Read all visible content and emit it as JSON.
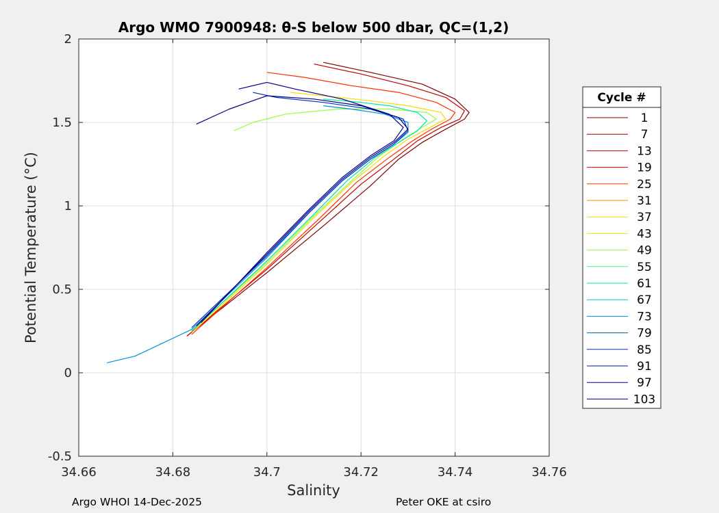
{
  "chart_data": {
    "type": "line",
    "title": "Argo WMO 7900948: θ-S below 500 dbar,  QC=(1,2)",
    "xlabel": "Salinity",
    "ylabel": "Potential Temperature (°C)",
    "xlim": [
      34.66,
      34.76
    ],
    "ylim": [
      -0.5,
      2
    ],
    "xticks": [
      34.66,
      34.68,
      34.7,
      34.72,
      34.74,
      34.76
    ],
    "xtick_labels": [
      "34.66",
      "34.68",
      "34.7",
      "34.72",
      "34.74",
      "34.76"
    ],
    "yticks": [
      -0.5,
      0,
      0.5,
      1,
      1.5,
      2
    ],
    "ytick_labels": [
      "-0.5",
      "0",
      "0.5",
      "1",
      "1.5",
      "2"
    ],
    "grid": true,
    "legend": {
      "title": "Cycle #",
      "location": "right",
      "entries": [
        "1",
        "7",
        "13",
        "19",
        "25",
        "31",
        "37",
        "43",
        "49",
        "55",
        "61",
        "67",
        "73",
        "79",
        "85",
        "91",
        "97",
        "103"
      ],
      "colors": [
        "#7f0000",
        "#9a0000",
        "#c00000",
        "#e00000",
        "#ff3000",
        "#ff9000",
        "#ffd800",
        "#d8f000",
        "#90ff40",
        "#40ff80",
        "#00e0b0",
        "#00c0e0",
        "#0090d8",
        "#0060a0",
        "#0030c0",
        "#0010a0",
        "#000080",
        "#00008c"
      ]
    },
    "series": [
      {
        "name": "1",
        "x": [
          34.683,
          34.7,
          34.712,
          34.722,
          34.728,
          34.733,
          34.738,
          34.742,
          34.743,
          34.74,
          34.733,
          34.722,
          34.712
        ],
        "y": [
          0.22,
          0.6,
          0.88,
          1.12,
          1.28,
          1.38,
          1.46,
          1.52,
          1.56,
          1.64,
          1.73,
          1.8,
          1.86
        ]
      },
      {
        "name": "13",
        "x": [
          34.683,
          34.7,
          34.711,
          34.72,
          34.727,
          34.732,
          34.737,
          34.741,
          34.742,
          34.738,
          34.73,
          34.72,
          34.71
        ],
        "y": [
          0.22,
          0.62,
          0.9,
          1.13,
          1.28,
          1.39,
          1.47,
          1.52,
          1.57,
          1.65,
          1.72,
          1.79,
          1.85
        ]
      },
      {
        "name": "25",
        "x": [
          34.684,
          34.7,
          34.711,
          34.719,
          34.726,
          34.731,
          34.735,
          34.739,
          34.74,
          34.736,
          34.728,
          34.718,
          34.708,
          34.7
        ],
        "y": [
          0.23,
          0.63,
          0.92,
          1.14,
          1.29,
          1.39,
          1.46,
          1.52,
          1.56,
          1.62,
          1.68,
          1.72,
          1.77,
          1.8
        ]
      },
      {
        "name": "37",
        "x": [
          34.684,
          34.7,
          34.71,
          34.718,
          34.725,
          34.73,
          34.734,
          34.738,
          34.737,
          34.73,
          34.722,
          34.712,
          34.705
        ],
        "y": [
          0.24,
          0.65,
          0.93,
          1.14,
          1.3,
          1.4,
          1.46,
          1.52,
          1.56,
          1.6,
          1.63,
          1.66,
          1.68
        ]
      },
      {
        "name": "49",
        "x": [
          34.684,
          34.7,
          34.71,
          34.718,
          34.724,
          34.729,
          34.733,
          34.736,
          34.734,
          34.726,
          34.715,
          34.704,
          34.697,
          34.693
        ],
        "y": [
          0.25,
          0.66,
          0.94,
          1.15,
          1.3,
          1.4,
          1.47,
          1.52,
          1.56,
          1.58,
          1.58,
          1.55,
          1.5,
          1.45
        ]
      },
      {
        "name": "61",
        "x": [
          34.684,
          34.7,
          34.71,
          34.717,
          34.723,
          34.728,
          34.732,
          34.734,
          34.732,
          34.726,
          34.72,
          34.712
        ],
        "y": [
          0.25,
          0.67,
          0.95,
          1.15,
          1.29,
          1.38,
          1.45,
          1.51,
          1.56,
          1.6,
          1.62,
          1.64
        ]
      },
      {
        "name": "73",
        "x": [
          34.666,
          34.672,
          34.678,
          34.684,
          34.7,
          34.709,
          34.716,
          34.722,
          34.727,
          34.73,
          34.73,
          34.725,
          34.718,
          34.712
        ],
        "y": [
          0.06,
          0.1,
          0.18,
          0.26,
          0.69,
          0.96,
          1.15,
          1.28,
          1.37,
          1.44,
          1.5,
          1.55,
          1.58,
          1.6
        ]
      },
      {
        "name": "85",
        "x": [
          34.684,
          34.7,
          34.709,
          34.716,
          34.722,
          34.727,
          34.73,
          34.729,
          34.722,
          34.712,
          34.702,
          34.697
        ],
        "y": [
          0.27,
          0.7,
          0.96,
          1.15,
          1.28,
          1.37,
          1.45,
          1.52,
          1.58,
          1.62,
          1.65,
          1.68
        ]
      },
      {
        "name": "97",
        "x": [
          34.685,
          34.7,
          34.709,
          34.716,
          34.722,
          34.727,
          34.73,
          34.728,
          34.72,
          34.71,
          34.7,
          34.692,
          34.685
        ],
        "y": [
          0.28,
          0.71,
          0.97,
          1.16,
          1.29,
          1.38,
          1.46,
          1.53,
          1.6,
          1.64,
          1.66,
          1.58,
          1.49
        ]
      },
      {
        "name": "103",
        "x": [
          34.686,
          34.7,
          34.709,
          34.716,
          34.722,
          34.727,
          34.729,
          34.726,
          34.716,
          34.706,
          34.7,
          34.694
        ],
        "y": [
          0.3,
          0.72,
          0.98,
          1.17,
          1.3,
          1.39,
          1.47,
          1.55,
          1.64,
          1.7,
          1.74,
          1.7
        ]
      }
    ]
  },
  "footer": {
    "left": "Argo WHOI 14-Dec-2025",
    "right": "Peter OKE at csiro"
  }
}
